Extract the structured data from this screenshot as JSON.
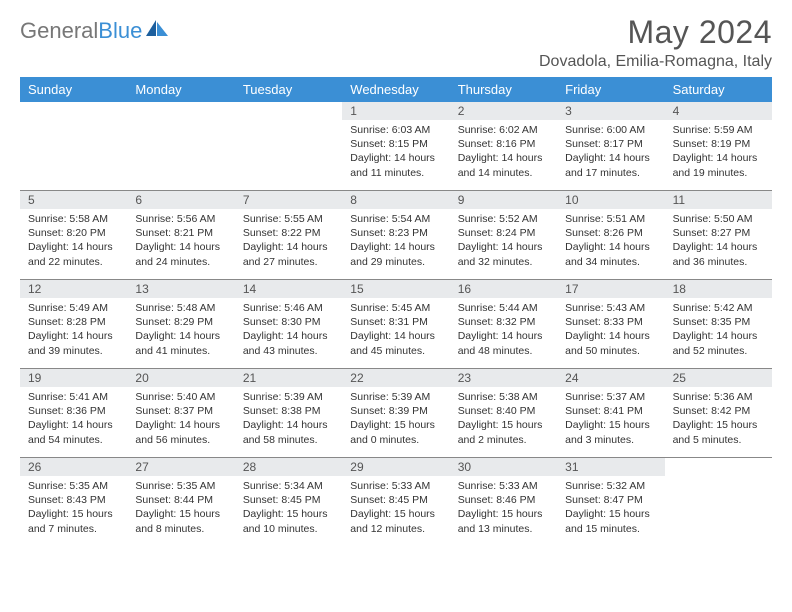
{
  "logo": {
    "word1": "General",
    "word2": "Blue"
  },
  "title": "May 2024",
  "location": "Dovadola, Emilia-Romagna, Italy",
  "colors": {
    "header_bg": "#3b8fd5",
    "header_text": "#ffffff",
    "daynum_bg": "#e8eaec",
    "text": "#333333",
    "rule": "#888888"
  },
  "dayNames": [
    "Sunday",
    "Monday",
    "Tuesday",
    "Wednesday",
    "Thursday",
    "Friday",
    "Saturday"
  ],
  "weeks": [
    [
      {
        "blank": true
      },
      {
        "blank": true
      },
      {
        "blank": true
      },
      {
        "n": "1",
        "sunrise": "Sunrise: 6:03 AM",
        "sunset": "Sunset: 8:15 PM",
        "daylight": "Daylight: 14 hours and 11 minutes."
      },
      {
        "n": "2",
        "sunrise": "Sunrise: 6:02 AM",
        "sunset": "Sunset: 8:16 PM",
        "daylight": "Daylight: 14 hours and 14 minutes."
      },
      {
        "n": "3",
        "sunrise": "Sunrise: 6:00 AM",
        "sunset": "Sunset: 8:17 PM",
        "daylight": "Daylight: 14 hours and 17 minutes."
      },
      {
        "n": "4",
        "sunrise": "Sunrise: 5:59 AM",
        "sunset": "Sunset: 8:19 PM",
        "daylight": "Daylight: 14 hours and 19 minutes."
      }
    ],
    [
      {
        "n": "5",
        "sunrise": "Sunrise: 5:58 AM",
        "sunset": "Sunset: 8:20 PM",
        "daylight": "Daylight: 14 hours and 22 minutes."
      },
      {
        "n": "6",
        "sunrise": "Sunrise: 5:56 AM",
        "sunset": "Sunset: 8:21 PM",
        "daylight": "Daylight: 14 hours and 24 minutes."
      },
      {
        "n": "7",
        "sunrise": "Sunrise: 5:55 AM",
        "sunset": "Sunset: 8:22 PM",
        "daylight": "Daylight: 14 hours and 27 minutes."
      },
      {
        "n": "8",
        "sunrise": "Sunrise: 5:54 AM",
        "sunset": "Sunset: 8:23 PM",
        "daylight": "Daylight: 14 hours and 29 minutes."
      },
      {
        "n": "9",
        "sunrise": "Sunrise: 5:52 AM",
        "sunset": "Sunset: 8:24 PM",
        "daylight": "Daylight: 14 hours and 32 minutes."
      },
      {
        "n": "10",
        "sunrise": "Sunrise: 5:51 AM",
        "sunset": "Sunset: 8:26 PM",
        "daylight": "Daylight: 14 hours and 34 minutes."
      },
      {
        "n": "11",
        "sunrise": "Sunrise: 5:50 AM",
        "sunset": "Sunset: 8:27 PM",
        "daylight": "Daylight: 14 hours and 36 minutes."
      }
    ],
    [
      {
        "n": "12",
        "sunrise": "Sunrise: 5:49 AM",
        "sunset": "Sunset: 8:28 PM",
        "daylight": "Daylight: 14 hours and 39 minutes."
      },
      {
        "n": "13",
        "sunrise": "Sunrise: 5:48 AM",
        "sunset": "Sunset: 8:29 PM",
        "daylight": "Daylight: 14 hours and 41 minutes."
      },
      {
        "n": "14",
        "sunrise": "Sunrise: 5:46 AM",
        "sunset": "Sunset: 8:30 PM",
        "daylight": "Daylight: 14 hours and 43 minutes."
      },
      {
        "n": "15",
        "sunrise": "Sunrise: 5:45 AM",
        "sunset": "Sunset: 8:31 PM",
        "daylight": "Daylight: 14 hours and 45 minutes."
      },
      {
        "n": "16",
        "sunrise": "Sunrise: 5:44 AM",
        "sunset": "Sunset: 8:32 PM",
        "daylight": "Daylight: 14 hours and 48 minutes."
      },
      {
        "n": "17",
        "sunrise": "Sunrise: 5:43 AM",
        "sunset": "Sunset: 8:33 PM",
        "daylight": "Daylight: 14 hours and 50 minutes."
      },
      {
        "n": "18",
        "sunrise": "Sunrise: 5:42 AM",
        "sunset": "Sunset: 8:35 PM",
        "daylight": "Daylight: 14 hours and 52 minutes."
      }
    ],
    [
      {
        "n": "19",
        "sunrise": "Sunrise: 5:41 AM",
        "sunset": "Sunset: 8:36 PM",
        "daylight": "Daylight: 14 hours and 54 minutes."
      },
      {
        "n": "20",
        "sunrise": "Sunrise: 5:40 AM",
        "sunset": "Sunset: 8:37 PM",
        "daylight": "Daylight: 14 hours and 56 minutes."
      },
      {
        "n": "21",
        "sunrise": "Sunrise: 5:39 AM",
        "sunset": "Sunset: 8:38 PM",
        "daylight": "Daylight: 14 hours and 58 minutes."
      },
      {
        "n": "22",
        "sunrise": "Sunrise: 5:39 AM",
        "sunset": "Sunset: 8:39 PM",
        "daylight": "Daylight: 15 hours and 0 minutes."
      },
      {
        "n": "23",
        "sunrise": "Sunrise: 5:38 AM",
        "sunset": "Sunset: 8:40 PM",
        "daylight": "Daylight: 15 hours and 2 minutes."
      },
      {
        "n": "24",
        "sunrise": "Sunrise: 5:37 AM",
        "sunset": "Sunset: 8:41 PM",
        "daylight": "Daylight: 15 hours and 3 minutes."
      },
      {
        "n": "25",
        "sunrise": "Sunrise: 5:36 AM",
        "sunset": "Sunset: 8:42 PM",
        "daylight": "Daylight: 15 hours and 5 minutes."
      }
    ],
    [
      {
        "n": "26",
        "sunrise": "Sunrise: 5:35 AM",
        "sunset": "Sunset: 8:43 PM",
        "daylight": "Daylight: 15 hours and 7 minutes."
      },
      {
        "n": "27",
        "sunrise": "Sunrise: 5:35 AM",
        "sunset": "Sunset: 8:44 PM",
        "daylight": "Daylight: 15 hours and 8 minutes."
      },
      {
        "n": "28",
        "sunrise": "Sunrise: 5:34 AM",
        "sunset": "Sunset: 8:45 PM",
        "daylight": "Daylight: 15 hours and 10 minutes."
      },
      {
        "n": "29",
        "sunrise": "Sunrise: 5:33 AM",
        "sunset": "Sunset: 8:45 PM",
        "daylight": "Daylight: 15 hours and 12 minutes."
      },
      {
        "n": "30",
        "sunrise": "Sunrise: 5:33 AM",
        "sunset": "Sunset: 8:46 PM",
        "daylight": "Daylight: 15 hours and 13 minutes."
      },
      {
        "n": "31",
        "sunrise": "Sunrise: 5:32 AM",
        "sunset": "Sunset: 8:47 PM",
        "daylight": "Daylight: 15 hours and 15 minutes."
      },
      {
        "blank": true
      }
    ]
  ]
}
